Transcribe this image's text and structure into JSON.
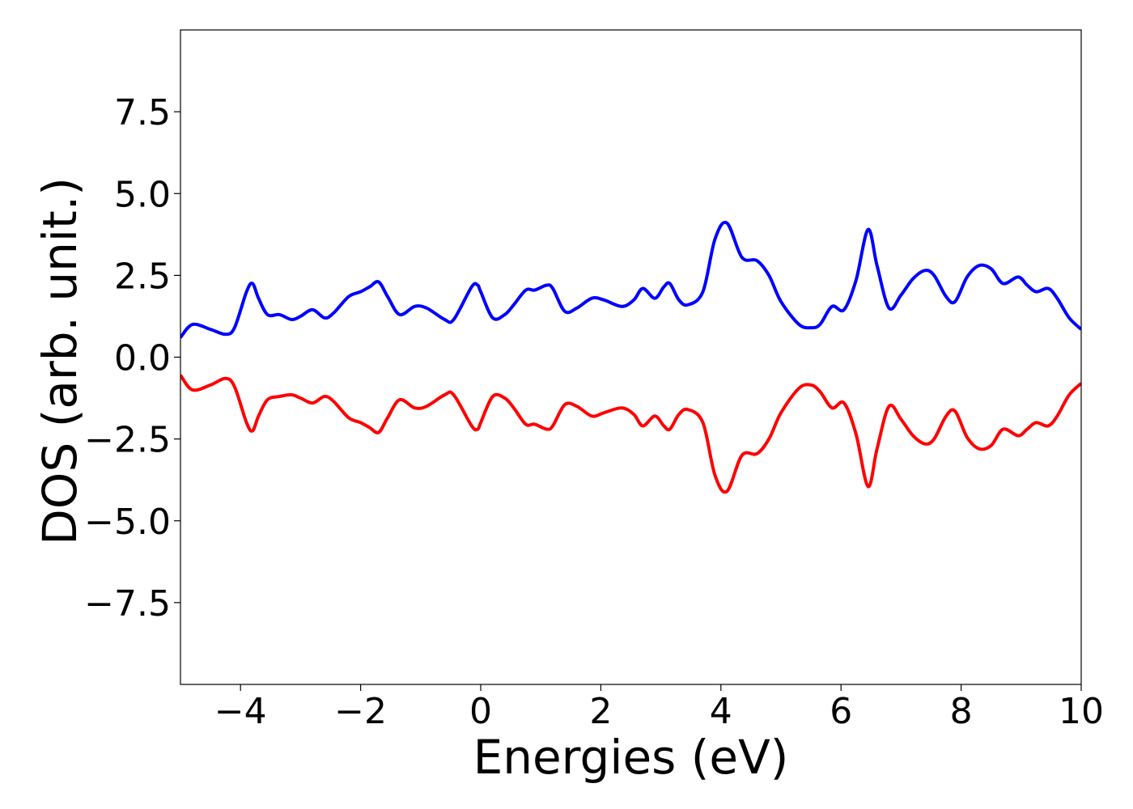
{
  "chart_data": {
    "type": "line",
    "title": "",
    "xlabel": "Energies (eV)",
    "ylabel": "DOS (arb. unit.)",
    "xlim": [
      -5,
      10
    ],
    "ylim": [
      -10,
      10
    ],
    "xticks": [
      -4,
      -2,
      0,
      2,
      4,
      6,
      8,
      10
    ],
    "xtick_labels": [
      "−4",
      "−2",
      "0",
      "2",
      "4",
      "6",
      "8",
      "10"
    ],
    "yticks": [
      -7.5,
      -5.0,
      -2.5,
      0.0,
      2.5,
      5.0,
      7.5
    ],
    "ytick_labels": [
      "−7.5",
      "−5.0",
      "−2.5",
      "0.0",
      "2.5",
      "5.0",
      "7.5"
    ],
    "grid": false,
    "legend": "none",
    "series": [
      {
        "color": "#0000ff",
        "x": [
          -5.0,
          -4.8,
          -4.5,
          -4.25,
          -4.1,
          -3.9,
          -3.8,
          -3.7,
          -3.55,
          -3.35,
          -3.15,
          -3.0,
          -2.8,
          -2.6,
          -2.45,
          -2.2,
          -2.0,
          -1.85,
          -1.7,
          -1.55,
          -1.35,
          -1.1,
          -0.9,
          -0.6,
          -0.45,
          -0.15,
          -0.05,
          0.0,
          0.2,
          0.4,
          0.55,
          0.75,
          0.9,
          1.1,
          1.2,
          1.4,
          1.6,
          1.85,
          2.05,
          2.35,
          2.55,
          2.7,
          2.9,
          3.05,
          3.15,
          3.3,
          3.45,
          3.7,
          3.9,
          4.1,
          4.35,
          4.6,
          4.8,
          5.0,
          5.3,
          5.5,
          5.65,
          5.85,
          6.05,
          6.25,
          6.45,
          6.6,
          6.8,
          7.0,
          7.2,
          7.4,
          7.55,
          7.75,
          7.9,
          8.1,
          8.3,
          8.5,
          8.7,
          8.95,
          9.1,
          9.25,
          9.45,
          9.6,
          9.8,
          10.0
        ],
        "y": [
          0.6,
          1.0,
          0.85,
          0.7,
          0.9,
          2.0,
          2.25,
          1.8,
          1.3,
          1.3,
          1.15,
          1.25,
          1.45,
          1.2,
          1.35,
          1.85,
          2.0,
          2.15,
          2.3,
          1.85,
          1.3,
          1.55,
          1.5,
          1.15,
          1.15,
          2.15,
          2.2,
          2.0,
          1.2,
          1.3,
          1.6,
          2.05,
          2.05,
          2.2,
          2.1,
          1.4,
          1.5,
          1.8,
          1.75,
          1.55,
          1.75,
          2.1,
          1.8,
          2.15,
          2.25,
          1.75,
          1.6,
          2.0,
          3.6,
          4.1,
          3.05,
          2.95,
          2.5,
          1.7,
          1.0,
          0.9,
          1.0,
          1.55,
          1.45,
          2.35,
          3.9,
          2.8,
          1.5,
          1.9,
          2.4,
          2.65,
          2.5,
          1.85,
          1.7,
          2.45,
          2.8,
          2.7,
          2.25,
          2.45,
          2.2,
          2.0,
          2.1,
          1.8,
          1.2,
          0.85
        ]
      },
      {
        "color": "#ff0000",
        "x": [
          -5.0,
          -4.8,
          -4.5,
          -4.25,
          -4.1,
          -3.9,
          -3.8,
          -3.7,
          -3.55,
          -3.35,
          -3.15,
          -3.0,
          -2.8,
          -2.6,
          -2.45,
          -2.2,
          -2.0,
          -1.85,
          -1.7,
          -1.55,
          -1.35,
          -1.1,
          -0.9,
          -0.6,
          -0.45,
          -0.15,
          -0.05,
          0.0,
          0.2,
          0.4,
          0.55,
          0.75,
          0.9,
          1.1,
          1.2,
          1.4,
          1.6,
          1.85,
          2.05,
          2.35,
          2.55,
          2.7,
          2.9,
          3.05,
          3.15,
          3.3,
          3.45,
          3.7,
          3.9,
          4.1,
          4.35,
          4.6,
          4.8,
          5.0,
          5.3,
          5.5,
          5.65,
          5.85,
          6.05,
          6.25,
          6.45,
          6.6,
          6.8,
          7.0,
          7.2,
          7.4,
          7.55,
          7.75,
          7.9,
          8.1,
          8.3,
          8.5,
          8.7,
          8.95,
          9.1,
          9.25,
          9.45,
          9.6,
          9.8,
          10.0
        ],
        "y": [
          -0.55,
          -1.0,
          -0.85,
          -0.65,
          -0.9,
          -2.0,
          -2.25,
          -1.8,
          -1.3,
          -1.2,
          -1.15,
          -1.25,
          -1.4,
          -1.2,
          -1.35,
          -1.85,
          -2.0,
          -2.15,
          -2.3,
          -1.85,
          -1.3,
          -1.55,
          -1.5,
          -1.15,
          -1.15,
          -2.1,
          -2.2,
          -2.0,
          -1.2,
          -1.25,
          -1.55,
          -2.05,
          -2.05,
          -2.2,
          -2.1,
          -1.45,
          -1.5,
          -1.8,
          -1.7,
          -1.55,
          -1.75,
          -2.1,
          -1.8,
          -2.1,
          -2.2,
          -1.75,
          -1.6,
          -2.0,
          -3.6,
          -4.1,
          -3.0,
          -2.95,
          -2.5,
          -1.7,
          -0.95,
          -0.85,
          -1.05,
          -1.55,
          -1.4,
          -2.35,
          -3.95,
          -2.8,
          -1.5,
          -1.9,
          -2.4,
          -2.65,
          -2.5,
          -1.8,
          -1.65,
          -2.45,
          -2.8,
          -2.7,
          -2.2,
          -2.4,
          -2.2,
          -2.0,
          -2.1,
          -1.8,
          -1.15,
          -0.8
        ]
      }
    ]
  }
}
